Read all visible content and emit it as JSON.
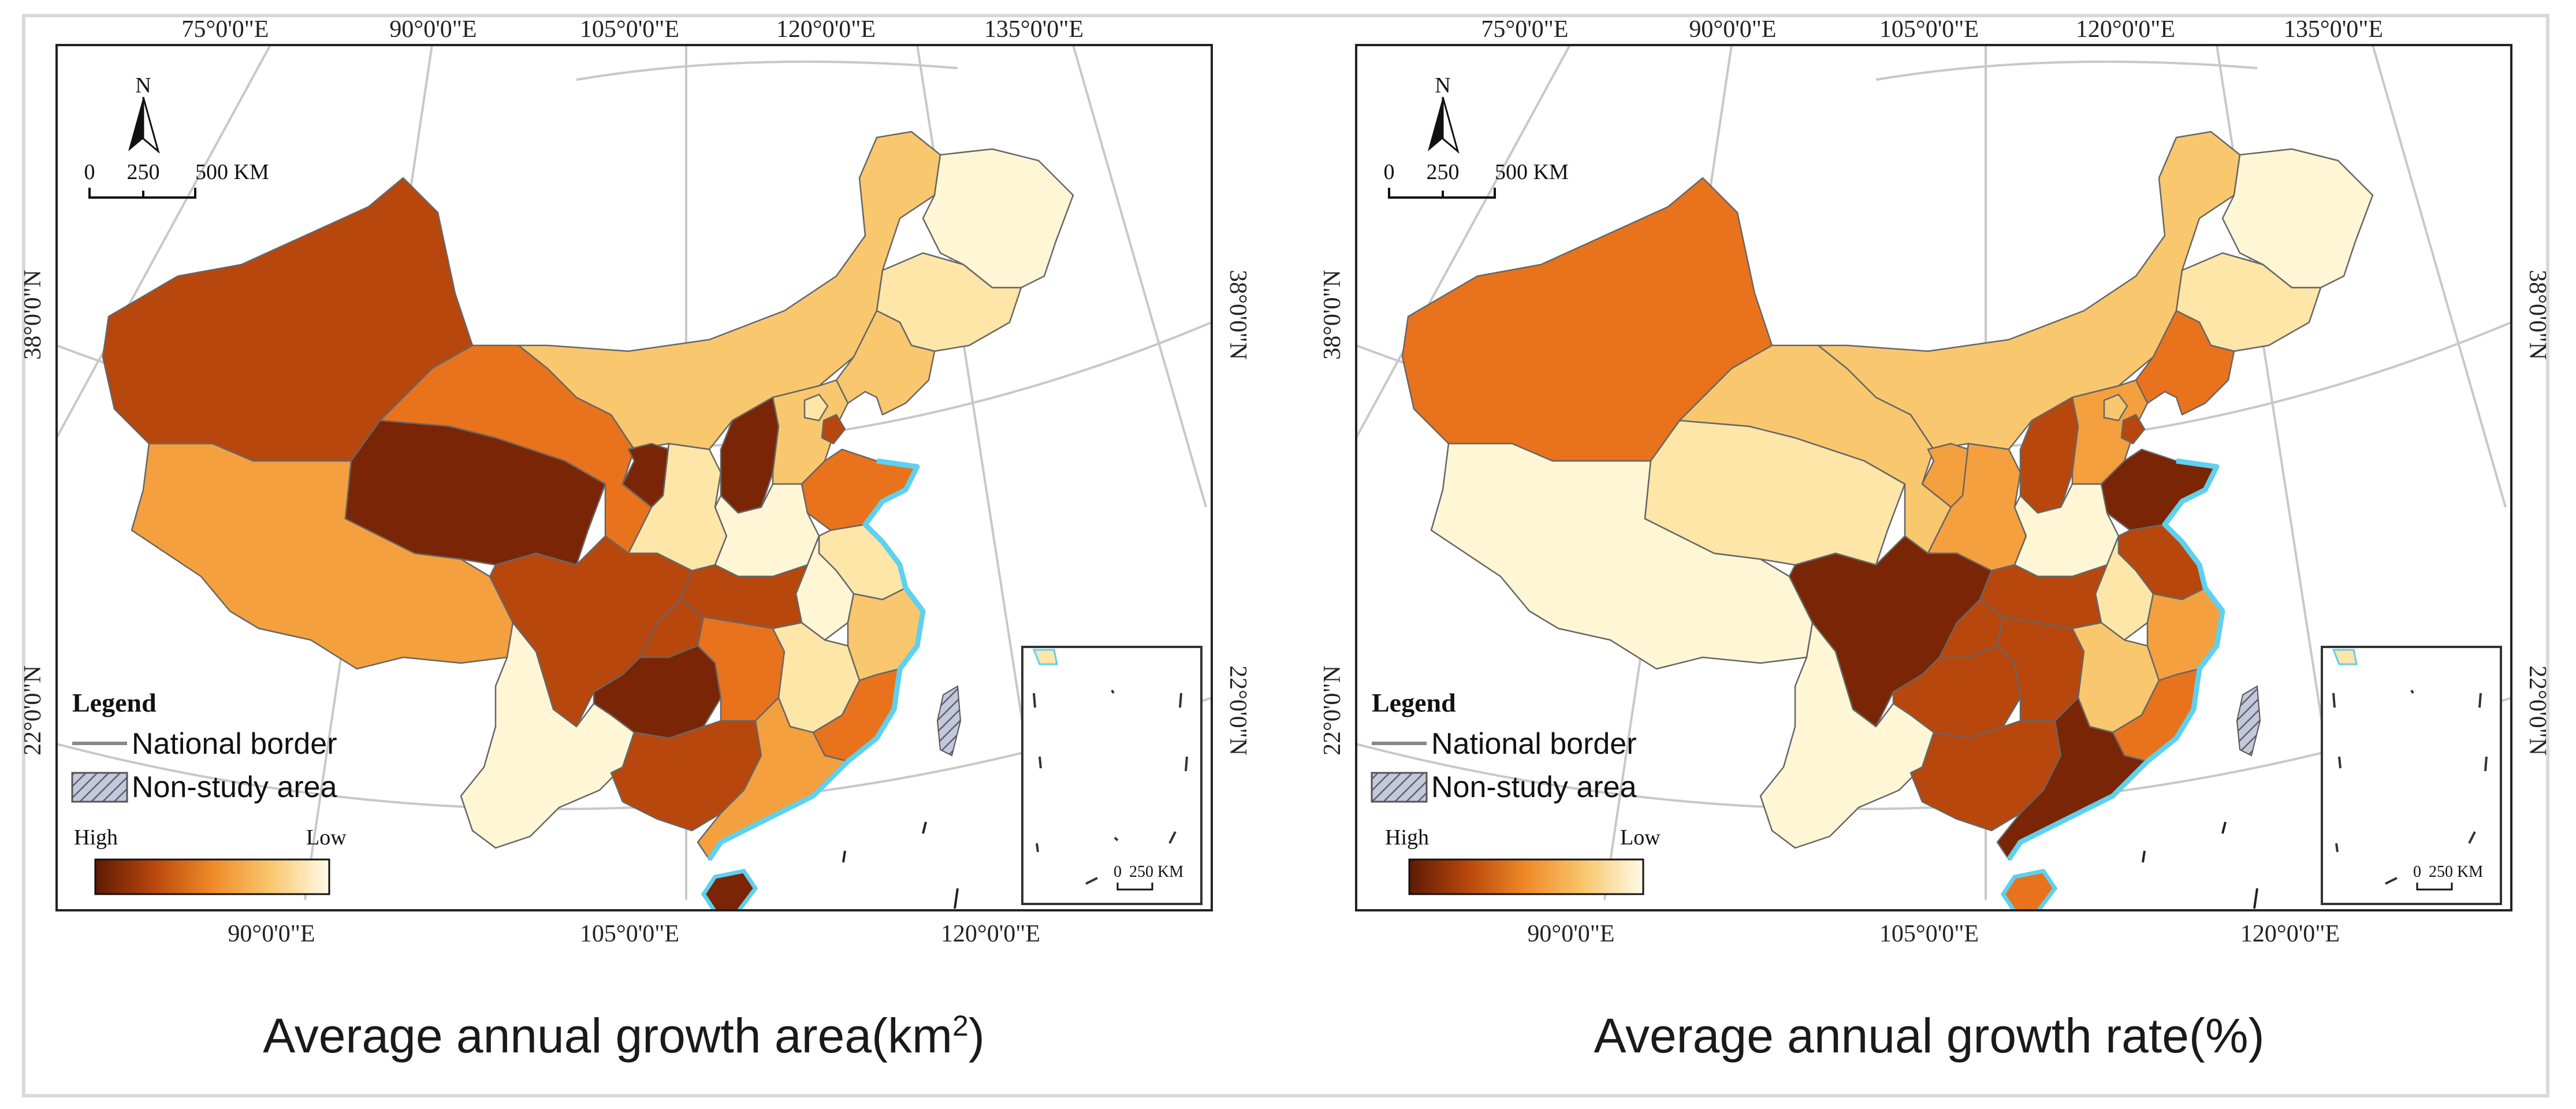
{
  "panels": [
    {
      "title": "Average annual growth area(km",
      "title_sup": "2",
      "title_tail": ")",
      "top_lon_labels": [
        "75°0'0\"E",
        "90°0'0\"E",
        "105°0'0\"E",
        "120°0'0\"E",
        "135°0'0\"E"
      ],
      "bottom_lon_labels": [
        "90°0'0\"E",
        "105°0'0\"E",
        "120°0'0\"E"
      ],
      "lat_labels": [
        "38°0'0\"N",
        "22°0'0\"N"
      ],
      "north": "N",
      "scale_ticks": [
        "0",
        "250",
        "500 KM"
      ],
      "inset_scale": [
        "0",
        "250 KM"
      ],
      "legend": {
        "title": "Legend",
        "border": "National border",
        "nonstudy": "Non-study area",
        "high": "High",
        "low": "Low"
      }
    },
    {
      "title": "Average annual growth rate(%)",
      "top_lon_labels": [
        "75°0'0\"E",
        "90°0'0\"E",
        "105°0'0\"E",
        "120°0'0\"E",
        "135°0'0\"E"
      ],
      "bottom_lon_labels": [
        "90°0'0\"E",
        "105°0'0\"E",
        "120°0'0\"E"
      ],
      "lat_labels": [
        "38°0'0\"N",
        "22°0'0\"N"
      ],
      "north": "N",
      "scale_ticks": [
        "0",
        "250",
        "500 KM"
      ],
      "inset_scale": [
        "0",
        "250 KM"
      ],
      "legend": {
        "title": "Legend",
        "border": "National border",
        "nonstudy": "Non-study area",
        "high": "High",
        "low": "Low"
      }
    }
  ],
  "colors": {
    "c1": "#7a2505",
    "c2": "#b8470d",
    "c3": "#e8731c",
    "c4": "#f4a03f",
    "c5": "#f9c76e",
    "c6": "#fde6a8",
    "c7": "#fff6d5",
    "sea": "#5ed0f0"
  },
  "region_colors": [
    {
      "xinjiang": "c2",
      "tibet": "c4",
      "qinghai": "c1",
      "gansu": "c3",
      "neimenggu": "c5",
      "heilongjiang": "c7",
      "jilin": "c6",
      "liaoning": "c5",
      "ningxia": "c1",
      "shaanxi": "c6",
      "shanxi": "c1",
      "hebei": "c5",
      "beijing": "c6",
      "tianjin": "c2",
      "shandong": "c3",
      "henan": "c7",
      "jiangsu": "c6",
      "anhui": "c7",
      "hubei": "c2",
      "sichuan": "c2",
      "chongqing": "c2",
      "guizhou": "c1",
      "yunnan": "c7",
      "hunan": "c3",
      "jiangxi": "c6",
      "zhejiang": "c5",
      "fujian": "c3",
      "guangxi": "c2",
      "guangdong": "c4",
      "hainan": "c1"
    },
    {
      "xinjiang": "c3",
      "tibet": "c7",
      "qinghai": "c6",
      "gansu": "c5",
      "neimenggu": "c5",
      "heilongjiang": "c7",
      "jilin": "c6",
      "liaoning": "c3",
      "ningxia": "c4",
      "shaanxi": "c4",
      "shanxi": "c2",
      "hebei": "c4",
      "beijing": "c5",
      "tianjin": "c2",
      "shandong": "c1",
      "henan": "c7",
      "jiangsu": "c2",
      "anhui": "c6",
      "hubei": "c2",
      "sichuan": "c1",
      "chongqing": "c2",
      "guizhou": "c2",
      "yunnan": "c7",
      "hunan": "c2",
      "jiangxi": "c5",
      "zhejiang": "c4",
      "fujian": "c3",
      "guangxi": "c2",
      "guangdong": "c1",
      "hainan": "c3"
    }
  ]
}
